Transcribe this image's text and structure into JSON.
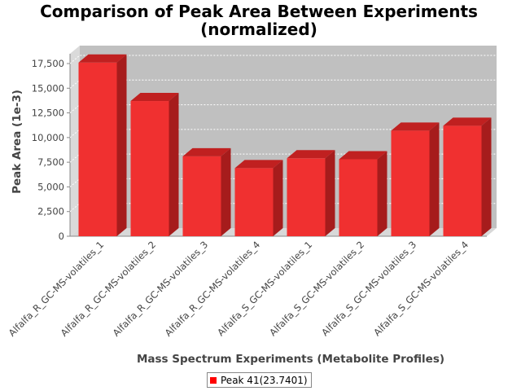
{
  "chart_data": {
    "type": "bar",
    "title": "Comparison of Peak Area Between Experiments",
    "subtitle": "(normalized)",
    "xlabel": "Mass Spectrum Experiments (Metabolite Profiles)",
    "ylabel": "Peak Area (1e-3)",
    "categories": [
      "Alfalfa_R_GC-MS-volatiles_1",
      "Alfalfa_R_GC-MS-volatiles_2",
      "Alfalfa_R_GC-MS-volatiles_3",
      "Alfalfa_R_GC-MS-volatiles_4",
      "Alfalfa_S_GC-MS-volatiles_1",
      "Alfalfa_S_GC-MS-volatiles_2",
      "Alfalfa_S_GC-MS-volatiles_3",
      "Alfalfa_S_GC-MS-volatiles_4"
    ],
    "series": [
      {
        "name": "Peak 41(23.7401)",
        "color": "#ff0000",
        "values": [
          17600,
          13700,
          8100,
          6900,
          7900,
          7800,
          10700,
          11200
        ]
      }
    ],
    "ylim": [
      0,
      17500
    ],
    "yticks": [
      0,
      2500,
      5000,
      7500,
      10000,
      12500,
      15000,
      17500
    ],
    "ytick_labels": [
      "0",
      "2,500",
      "5,000",
      "7,500",
      "10,000",
      "12,500",
      "15,000",
      "17,500"
    ],
    "grid": true,
    "style": "3d",
    "legend_position": "bottom"
  }
}
